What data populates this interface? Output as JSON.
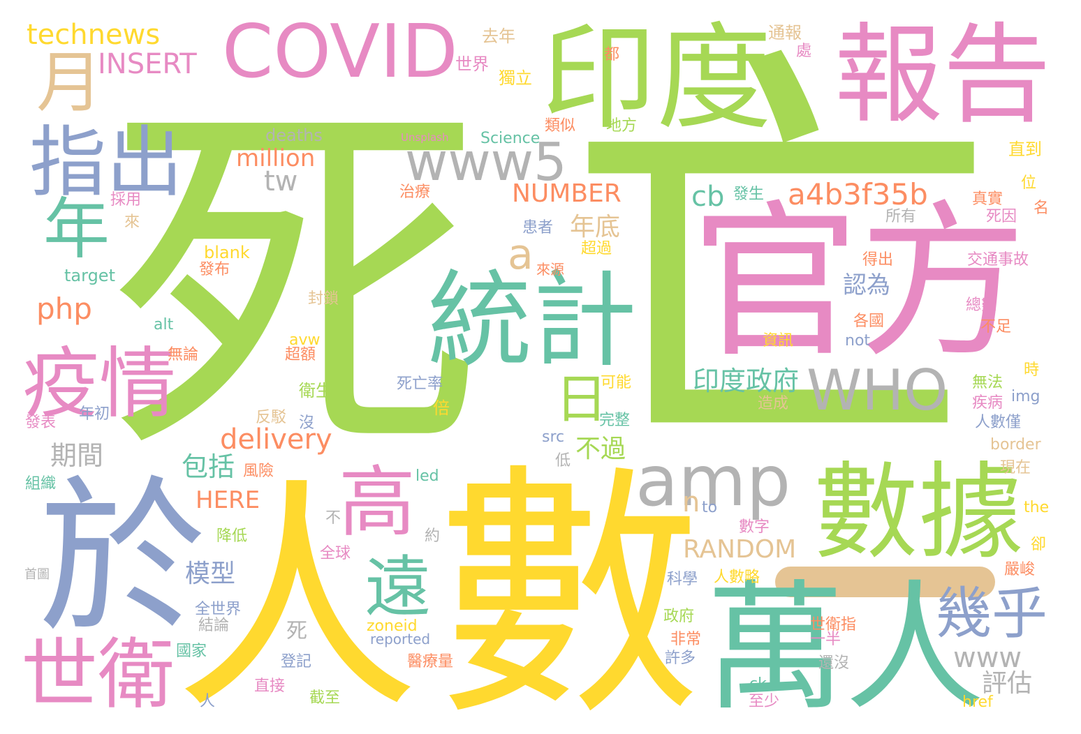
{
  "colors": {
    "green": "#a6d854",
    "yellow": "#ffd92f",
    "pink": "#e78ac3",
    "teal": "#66c2a5",
    "orange": "#fc8d62",
    "blue": "#8da0cb",
    "tan": "#e5c494",
    "gray": "#b3b3b3"
  },
  "words": [
    {
      "t": "死",
      "c": "green"
    },
    {
      "t": "亡",
      "c": "green"
    },
    {
      "t": "官方",
      "c": "pink"
    },
    {
      "t": "數",
      "c": "yellow"
    },
    {
      "t": "人",
      "c": "yellow"
    },
    {
      "t": "於",
      "c": "blue"
    },
    {
      "t": "萬人",
      "c": "teal"
    },
    {
      "t": "數據",
      "c": "green"
    },
    {
      "t": "統計",
      "c": "teal"
    },
    {
      "t": "印度",
      "c": "green"
    },
    {
      "t": "報告",
      "c": "pink"
    },
    {
      "t": "COVID",
      "c": "pink"
    },
    {
      "t": "指出",
      "c": "blue"
    },
    {
      "t": "疫情",
      "c": "pink"
    },
    {
      "t": "世衛",
      "c": "pink"
    },
    {
      "t": "amp",
      "c": "gray"
    },
    {
      "t": "WHO",
      "c": "gray"
    },
    {
      "t": "www5",
      "c": "gray"
    },
    {
      "t": "年",
      "c": "teal"
    },
    {
      "t": "月",
      "c": "tan"
    },
    {
      "t": "高",
      "c": "pink"
    },
    {
      "t": "遠",
      "c": "teal"
    },
    {
      "t": "日",
      "c": "green"
    },
    {
      "t": "幾乎",
      "c": "blue"
    },
    {
      "t": "a4b3f35b",
      "c": "orange"
    },
    {
      "t": "technews",
      "c": "yellow"
    },
    {
      "t": "INSERT",
      "c": "pink"
    },
    {
      "t": "delivery",
      "c": "orange"
    },
    {
      "t": "印度政府",
      "c": "teal"
    },
    {
      "t": "a",
      "c": "tan"
    },
    {
      "t": "cb",
      "c": "teal"
    },
    {
      "t": "php",
      "c": "orange"
    },
    {
      "t": "www",
      "c": "gray"
    },
    {
      "t": "RANDOM",
      "c": "tan"
    },
    {
      "t": "NUMBER",
      "c": "orange"
    },
    {
      "t": "million",
      "c": "orange"
    },
    {
      "t": "tw",
      "c": "gray"
    },
    {
      "t": "HERE",
      "c": "orange"
    },
    {
      "t": "n",
      "c": "tan"
    },
    {
      "t": "期間",
      "c": "gray"
    },
    {
      "t": "包括",
      "c": "teal"
    },
    {
      "t": "模型",
      "c": "blue"
    },
    {
      "t": "年底",
      "c": "tan"
    },
    {
      "t": "不過",
      "c": "green"
    },
    {
      "t": "評估",
      "c": "gray"
    },
    {
      "t": "認為",
      "c": "blue"
    },
    {
      "t": "死",
      "c": "gray"
    },
    {
      "t": "deaths",
      "c": "gray"
    },
    {
      "t": "Science",
      "c": "teal"
    },
    {
      "t": "Unsplash",
      "c": "pink"
    },
    {
      "t": "blank",
      "c": "yellow"
    },
    {
      "t": "target",
      "c": "teal"
    },
    {
      "t": "alt",
      "c": "teal"
    },
    {
      "t": "avw",
      "c": "yellow"
    },
    {
      "t": "src",
      "c": "blue"
    },
    {
      "t": "led",
      "c": "teal"
    },
    {
      "t": "to",
      "c": "blue"
    },
    {
      "t": "zoneid",
      "c": "yellow"
    },
    {
      "t": "reported",
      "c": "blue"
    },
    {
      "t": "ck",
      "c": "teal"
    },
    {
      "t": "href",
      "c": "yellow"
    },
    {
      "t": "not",
      "c": "blue"
    },
    {
      "t": "img",
      "c": "blue"
    },
    {
      "t": "border",
      "c": "tan"
    },
    {
      "t": "the",
      "c": "yellow"
    },
    {
      "t": "去年",
      "c": "tan"
    },
    {
      "t": "世界",
      "c": "pink"
    },
    {
      "t": "獨立",
      "c": "yellow"
    },
    {
      "t": "通報",
      "c": "tan"
    },
    {
      "t": "都",
      "c": "orange"
    },
    {
      "t": "處",
      "c": "pink"
    },
    {
      "t": "類似",
      "c": "orange"
    },
    {
      "t": "地方",
      "c": "green"
    },
    {
      "t": "直到",
      "c": "yellow"
    },
    {
      "t": "治療",
      "c": "orange"
    },
    {
      "t": "發生",
      "c": "teal"
    },
    {
      "t": "真實",
      "c": "orange"
    },
    {
      "t": "位",
      "c": "yellow"
    },
    {
      "t": "名",
      "c": "orange"
    },
    {
      "t": "所有",
      "c": "gray"
    },
    {
      "t": "死因",
      "c": "pink"
    },
    {
      "t": "採用",
      "c": "pink"
    },
    {
      "t": "來",
      "c": "tan"
    },
    {
      "t": "患者",
      "c": "blue"
    },
    {
      "t": "超過",
      "c": "yellow"
    },
    {
      "t": "得出",
      "c": "orange"
    },
    {
      "t": "交通事故",
      "c": "pink"
    },
    {
      "t": "發布",
      "c": "orange"
    },
    {
      "t": "來源",
      "c": "orange"
    },
    {
      "t": "封鎖",
      "c": "tan"
    },
    {
      "t": "總數",
      "c": "pink"
    },
    {
      "t": "各國",
      "c": "orange"
    },
    {
      "t": "資訊",
      "c": "yellow"
    },
    {
      "t": "不足",
      "c": "orange"
    },
    {
      "t": "無論",
      "c": "orange"
    },
    {
      "t": "超額",
      "c": "orange"
    },
    {
      "t": "時",
      "c": "yellow"
    },
    {
      "t": "可能",
      "c": "yellow"
    },
    {
      "t": "衛生",
      "c": "green"
    },
    {
      "t": "死亡率",
      "c": "blue"
    },
    {
      "t": "無法",
      "c": "green"
    },
    {
      "t": "造成",
      "c": "tan"
    },
    {
      "t": "疾病",
      "c": "pink"
    },
    {
      "t": "年初",
      "c": "blue"
    },
    {
      "t": "倍",
      "c": "yellow"
    },
    {
      "t": "發表",
      "c": "pink"
    },
    {
      "t": "反駁",
      "c": "tan"
    },
    {
      "t": "沒",
      "c": "blue"
    },
    {
      "t": "完整",
      "c": "teal"
    },
    {
      "t": "人數僅",
      "c": "blue"
    },
    {
      "t": "低",
      "c": "gray"
    },
    {
      "t": "組織",
      "c": "teal"
    },
    {
      "t": "風險",
      "c": "orange"
    },
    {
      "t": "現在",
      "c": "tan"
    },
    {
      "t": "不",
      "c": "gray"
    },
    {
      "t": "降低",
      "c": "green"
    },
    {
      "t": "約",
      "c": "gray"
    },
    {
      "t": "數字",
      "c": "pink"
    },
    {
      "t": "卻",
      "c": "yellow"
    },
    {
      "t": "全球",
      "c": "pink"
    },
    {
      "t": "首圖",
      "c": "gray"
    },
    {
      "t": "科學",
      "c": "blue"
    },
    {
      "t": "人數略",
      "c": "yellow"
    },
    {
      "t": "嚴峻",
      "c": "orange"
    },
    {
      "t": "全世界",
      "c": "blue"
    },
    {
      "t": "結論",
      "c": "gray"
    },
    {
      "t": "政府",
      "c": "green"
    },
    {
      "t": "世衛指",
      "c": "orange"
    },
    {
      "t": "非常",
      "c": "orange"
    },
    {
      "t": "一半",
      "c": "pink"
    },
    {
      "t": "國家",
      "c": "teal"
    },
    {
      "t": "登記",
      "c": "blue"
    },
    {
      "t": "醫療量",
      "c": "orange"
    },
    {
      "t": "許多",
      "c": "blue"
    },
    {
      "t": "還沒",
      "c": "gray"
    },
    {
      "t": "直接",
      "c": "pink"
    },
    {
      "t": "截至",
      "c": "green"
    },
    {
      "t": "人",
      "c": "blue"
    },
    {
      "t": "至少",
      "c": "pink"
    }
  ]
}
